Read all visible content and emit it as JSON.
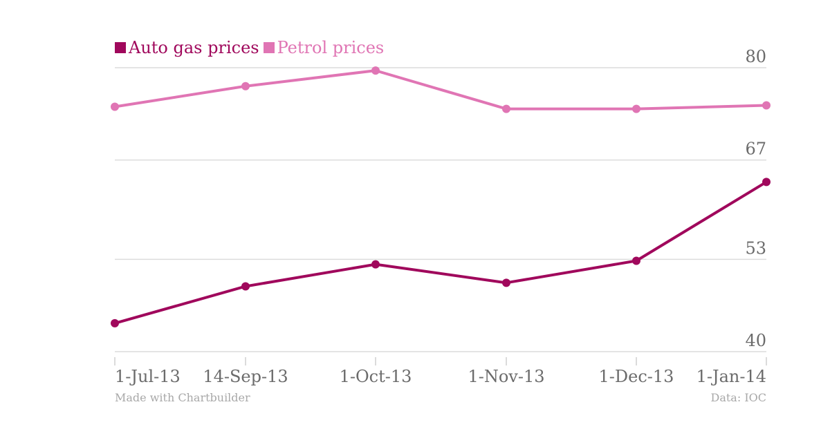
{
  "chart_data": {
    "type": "line",
    "categories": [
      "1-Jul-13",
      "14-Sep-13",
      "1-Oct-13",
      "1-Nov-13",
      "1-Dec-13",
      "1-Jan-14"
    ],
    "series": [
      {
        "name": "Auto gas prices",
        "color": "#a0085c",
        "values": [
          44.0,
          49.2,
          52.3,
          49.7,
          52.8,
          63.9
        ]
      },
      {
        "name": "Petrol prices",
        "color": "#e075b4",
        "values": [
          74.5,
          77.4,
          79.6,
          74.2,
          74.2,
          74.7
        ]
      }
    ],
    "y_ticks": [
      40,
      53,
      67,
      80
    ],
    "ylim": [
      40,
      80
    ],
    "grid": true,
    "legend_position": "top-left"
  },
  "footer": {
    "credit": "Made with Chartbuilder",
    "source": "Data: IOC"
  }
}
